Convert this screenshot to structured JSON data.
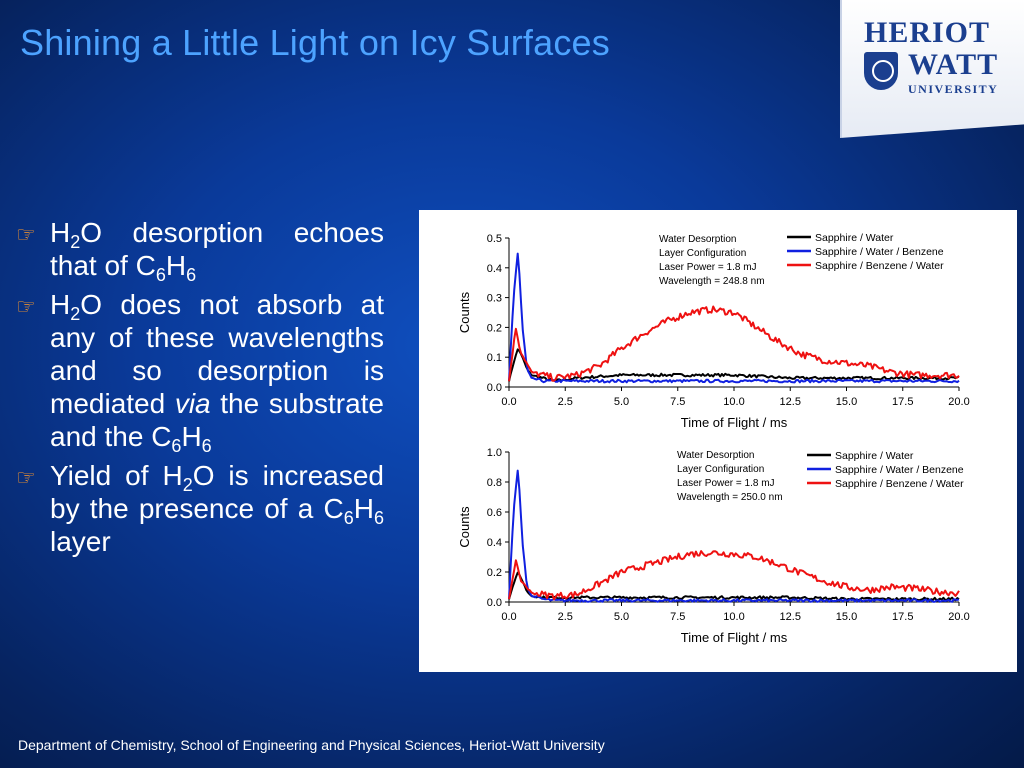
{
  "slide": {
    "title": "Shining a Little Light on Icy Surfaces",
    "footer": "Department of Chemistry, School of Engineering and Physical Sciences, Heriot-Watt University"
  },
  "logo": {
    "line1": "HERIOT",
    "line2": "WATT",
    "line3": "UNIVERSITY",
    "icon": "crest-icon"
  },
  "bullets": {
    "icon": "pointing-hand-icon",
    "b1": {
      "h2o": "H",
      "sub2": "2",
      "o": "O desorption echoes that of C",
      "sub6a": "6",
      "h": "H",
      "sub6b": "6"
    },
    "b2": {
      "h": "H",
      "sub2": "2",
      "text1": "O does not absorb at any of these wavelengths and so desorption is mediated ",
      "via": "via",
      "text2": " the substrate and the C",
      "sub6a": "6",
      "h2": "H",
      "sub6b": "6"
    },
    "b3": {
      "text1": "Yield of H",
      "sub2": "2",
      "text2": "O is increased by the presence of a C",
      "sub6a": "6",
      "h": "H",
      "sub6b": "6",
      "text3": " layer"
    }
  },
  "colors": {
    "series_black": "#000000",
    "series_blue": "#1020e0",
    "series_red": "#ee1111",
    "title": "#4da3ff",
    "bullet_icon": "#ff9a2a"
  },
  "chart_data": [
    {
      "type": "line",
      "xlabel": "Time of Flight / ms",
      "ylabel": "Counts",
      "xlim": [
        0,
        20
      ],
      "ylim": [
        0,
        0.5
      ],
      "xticks": [
        "0.0",
        "2.5",
        "5.0",
        "7.5",
        "10.0",
        "12.5",
        "15.0",
        "17.5",
        "20.0"
      ],
      "yticks": [
        "0.0",
        "0.1",
        "0.2",
        "0.3",
        "0.4",
        "0.5"
      ],
      "annotation": [
        "Water Desorption",
        "Layer Configuration",
        "Laser Power = 1.8 mJ",
        "Wavelength = 248.8 nm"
      ],
      "legend_position": "top-right",
      "series": [
        {
          "name": "Sapphire / Water",
          "color": "#000000",
          "x": [
            0.0,
            0.2,
            0.4,
            0.6,
            0.8,
            1.0,
            1.5,
            2.0,
            3.0,
            5.0,
            7.5,
            10.0,
            12.5,
            15.0,
            17.5,
            20.0
          ],
          "y": [
            0.02,
            0.08,
            0.13,
            0.1,
            0.06,
            0.04,
            0.03,
            0.02,
            0.03,
            0.04,
            0.04,
            0.04,
            0.03,
            0.03,
            0.03,
            0.03
          ]
        },
        {
          "name": "Sapphire / Water / Benzene",
          "color": "#1020e0",
          "x": [
            0.0,
            0.2,
            0.4,
            0.6,
            0.8,
            1.0,
            1.5,
            2.0,
            3.0,
            5.0,
            7.5,
            10.0,
            12.5,
            15.0,
            17.5,
            20.0
          ],
          "y": [
            0.02,
            0.3,
            0.46,
            0.2,
            0.06,
            0.03,
            0.02,
            0.02,
            0.02,
            0.02,
            0.02,
            0.02,
            0.02,
            0.02,
            0.02,
            0.02
          ]
        },
        {
          "name": "Sapphire / Benzene / Water",
          "color": "#ee1111",
          "x": [
            0.0,
            0.3,
            0.5,
            1.0,
            2.0,
            3.0,
            4.0,
            5.0,
            6.0,
            7.0,
            8.0,
            9.0,
            10.0,
            11.0,
            12.0,
            13.0,
            14.0,
            15.0,
            16.0,
            17.0,
            18.0,
            19.0,
            20.0
          ],
          "y": [
            0.02,
            0.2,
            0.12,
            0.05,
            0.03,
            0.04,
            0.07,
            0.13,
            0.18,
            0.22,
            0.25,
            0.26,
            0.25,
            0.2,
            0.15,
            0.11,
            0.09,
            0.08,
            0.07,
            0.05,
            0.04,
            0.04,
            0.04
          ]
        }
      ]
    },
    {
      "type": "line",
      "xlabel": "Time of Flight / ms",
      "ylabel": "Counts",
      "xlim": [
        0,
        20
      ],
      "ylim": [
        0,
        1.0
      ],
      "xticks": [
        "0.0",
        "2.5",
        "5.0",
        "7.5",
        "10.0",
        "12.5",
        "15.0",
        "17.5",
        "20.0"
      ],
      "yticks": [
        "0.0",
        "0.2",
        "0.4",
        "0.6",
        "0.8",
        "1.0"
      ],
      "annotation": [
        "Water Desorption",
        "Layer Configuration",
        "Laser Power = 1.8 mJ",
        "Wavelength = 250.0 nm"
      ],
      "legend_position": "top-right",
      "series": [
        {
          "name": "Sapphire / Water",
          "color": "#000000",
          "x": [
            0.0,
            0.2,
            0.4,
            0.6,
            0.8,
            1.0,
            1.5,
            2.0,
            3.0,
            5.0,
            7.5,
            10.0,
            12.5,
            15.0,
            17.5,
            20.0
          ],
          "y": [
            0.02,
            0.12,
            0.2,
            0.14,
            0.07,
            0.04,
            0.03,
            0.03,
            0.03,
            0.03,
            0.03,
            0.03,
            0.03,
            0.02,
            0.02,
            0.02
          ]
        },
        {
          "name": "Sapphire / Water / Benzene",
          "color": "#1020e0",
          "x": [
            0.0,
            0.2,
            0.4,
            0.6,
            0.8,
            1.0,
            1.5,
            2.0,
            3.0,
            5.0,
            7.5,
            10.0,
            12.5,
            15.0,
            17.5,
            20.0
          ],
          "y": [
            0.02,
            0.6,
            0.9,
            0.4,
            0.1,
            0.04,
            0.02,
            0.01,
            0.01,
            0.01,
            0.01,
            0.01,
            0.01,
            0.01,
            0.01,
            0.01
          ]
        },
        {
          "name": "Sapphire / Benzene / Water",
          "color": "#ee1111",
          "x": [
            0.0,
            0.3,
            0.5,
            1.0,
            2.0,
            3.0,
            4.0,
            5.0,
            6.0,
            7.0,
            8.0,
            9.0,
            10.0,
            11.0,
            12.0,
            13.0,
            14.0,
            15.0,
            16.0,
            17.0,
            18.0,
            19.0,
            20.0
          ],
          "y": [
            0.02,
            0.28,
            0.15,
            0.06,
            0.04,
            0.05,
            0.12,
            0.2,
            0.24,
            0.28,
            0.32,
            0.33,
            0.32,
            0.3,
            0.25,
            0.19,
            0.14,
            0.1,
            0.08,
            0.1,
            0.09,
            0.07,
            0.06
          ]
        }
      ]
    }
  ]
}
